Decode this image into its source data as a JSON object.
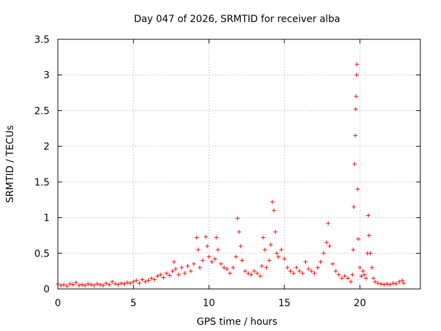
{
  "chart_data": {
    "type": "scatter",
    "title": "Day 047 of 2026, SRMTID for receiver alba",
    "xlabel": "GPS time / hours",
    "ylabel": "SRMTID / TECUs",
    "xlim": [
      0,
      24
    ],
    "ylim": [
      0,
      3.5
    ],
    "x_ticks": [
      0,
      5,
      10,
      15,
      20
    ],
    "x_tick_labels": [
      "0",
      "5",
      "10",
      "15",
      "20"
    ],
    "y_ticks": [
      0,
      0.5,
      1,
      1.5,
      2,
      2.5,
      3,
      3.5
    ],
    "y_tick_labels": [
      "0",
      "0.5",
      "1",
      "1.5",
      "2",
      "2.5",
      "3",
      "3.5"
    ],
    "grid": true,
    "marker": "+",
    "color": "#ff0000",
    "series": [
      {
        "name": "SRMTID",
        "points": [
          [
            0.0,
            0.07
          ],
          [
            0.2,
            0.05
          ],
          [
            0.4,
            0.06
          ],
          [
            0.6,
            0.04
          ],
          [
            0.8,
            0.07
          ],
          [
            1.0,
            0.06
          ],
          [
            1.2,
            0.09
          ],
          [
            1.4,
            0.05
          ],
          [
            1.6,
            0.06
          ],
          [
            1.8,
            0.05
          ],
          [
            2.0,
            0.07
          ],
          [
            2.2,
            0.06
          ],
          [
            2.4,
            0.05
          ],
          [
            2.6,
            0.07
          ],
          [
            2.8,
            0.06
          ],
          [
            3.0,
            0.05
          ],
          [
            3.2,
            0.08
          ],
          [
            3.4,
            0.06
          ],
          [
            3.6,
            0.1
          ],
          [
            3.8,
            0.07
          ],
          [
            4.0,
            0.06
          ],
          [
            4.2,
            0.08
          ],
          [
            4.4,
            0.07
          ],
          [
            4.6,
            0.09
          ],
          [
            4.8,
            0.08
          ],
          [
            5.0,
            0.1
          ],
          [
            5.2,
            0.12
          ],
          [
            5.4,
            0.08
          ],
          [
            5.6,
            0.13
          ],
          [
            5.8,
            0.1
          ],
          [
            6.0,
            0.12
          ],
          [
            6.2,
            0.15
          ],
          [
            6.4,
            0.13
          ],
          [
            6.6,
            0.18
          ],
          [
            6.8,
            0.2
          ],
          [
            7.0,
            0.16
          ],
          [
            7.2,
            0.22
          ],
          [
            7.4,
            0.19
          ],
          [
            7.6,
            0.25
          ],
          [
            7.7,
            0.38
          ],
          [
            7.8,
            0.28
          ],
          [
            8.0,
            0.2
          ],
          [
            8.2,
            0.3
          ],
          [
            8.4,
            0.22
          ],
          [
            8.6,
            0.32
          ],
          [
            8.8,
            0.25
          ],
          [
            9.0,
            0.35
          ],
          [
            9.2,
            0.72
          ],
          [
            9.3,
            0.55
          ],
          [
            9.4,
            0.3
          ],
          [
            9.6,
            0.4
          ],
          [
            9.8,
            0.73
          ],
          [
            9.9,
            0.6
          ],
          [
            10.0,
            0.45
          ],
          [
            10.2,
            0.38
          ],
          [
            10.4,
            0.42
          ],
          [
            10.5,
            0.72
          ],
          [
            10.6,
            0.55
          ],
          [
            10.8,
            0.35
          ],
          [
            11.0,
            0.3
          ],
          [
            11.2,
            0.28
          ],
          [
            11.4,
            0.22
          ],
          [
            11.6,
            0.3
          ],
          [
            11.8,
            0.45
          ],
          [
            11.9,
            0.99
          ],
          [
            12.0,
            0.8
          ],
          [
            12.1,
            0.6
          ],
          [
            12.2,
            0.4
          ],
          [
            12.4,
            0.25
          ],
          [
            12.6,
            0.22
          ],
          [
            12.8,
            0.2
          ],
          [
            13.0,
            0.25
          ],
          [
            13.2,
            0.22
          ],
          [
            13.4,
            0.18
          ],
          [
            13.5,
            0.32
          ],
          [
            13.6,
            0.72
          ],
          [
            13.7,
            0.55
          ],
          [
            13.8,
            0.3
          ],
          [
            14.0,
            0.4
          ],
          [
            14.1,
            0.62
          ],
          [
            14.2,
            1.22
          ],
          [
            14.3,
            1.1
          ],
          [
            14.4,
            0.8
          ],
          [
            14.5,
            0.5
          ],
          [
            14.6,
            0.45
          ],
          [
            14.8,
            0.55
          ],
          [
            15.0,
            0.42
          ],
          [
            15.2,
            0.3
          ],
          [
            15.4,
            0.25
          ],
          [
            15.6,
            0.22
          ],
          [
            15.8,
            0.3
          ],
          [
            16.0,
            0.25
          ],
          [
            16.2,
            0.22
          ],
          [
            16.4,
            0.38
          ],
          [
            16.6,
            0.28
          ],
          [
            16.8,
            0.25
          ],
          [
            17.0,
            0.22
          ],
          [
            17.2,
            0.3
          ],
          [
            17.4,
            0.38
          ],
          [
            17.6,
            0.5
          ],
          [
            17.8,
            0.65
          ],
          [
            17.9,
            0.92
          ],
          [
            18.0,
            0.6
          ],
          [
            18.2,
            0.35
          ],
          [
            18.4,
            0.25
          ],
          [
            18.6,
            0.2
          ],
          [
            18.8,
            0.15
          ],
          [
            19.0,
            0.18
          ],
          [
            19.2,
            0.15
          ],
          [
            19.4,
            0.1
          ],
          [
            19.5,
            0.2
          ],
          [
            19.55,
            0.55
          ],
          [
            19.6,
            1.15
          ],
          [
            19.65,
            1.75
          ],
          [
            19.7,
            2.15
          ],
          [
            19.72,
            2.52
          ],
          [
            19.75,
            2.7
          ],
          [
            19.78,
            3.0
          ],
          [
            19.8,
            3.15
          ],
          [
            19.85,
            1.4
          ],
          [
            19.9,
            0.7
          ],
          [
            20.0,
            0.3
          ],
          [
            20.1,
            0.18
          ],
          [
            20.2,
            0.25
          ],
          [
            20.3,
            0.2
          ],
          [
            20.4,
            0.15
          ],
          [
            20.5,
            0.5
          ],
          [
            20.55,
            1.03
          ],
          [
            20.6,
            0.75
          ],
          [
            20.7,
            0.5
          ],
          [
            20.8,
            0.3
          ],
          [
            20.9,
            0.15
          ],
          [
            21.0,
            0.1
          ],
          [
            21.2,
            0.08
          ],
          [
            21.4,
            0.07
          ],
          [
            21.6,
            0.06
          ],
          [
            21.8,
            0.07
          ],
          [
            22.0,
            0.06
          ],
          [
            22.2,
            0.08
          ],
          [
            22.4,
            0.07
          ],
          [
            22.6,
            0.1
          ],
          [
            22.8,
            0.12
          ],
          [
            22.9,
            0.08
          ]
        ]
      }
    ]
  }
}
